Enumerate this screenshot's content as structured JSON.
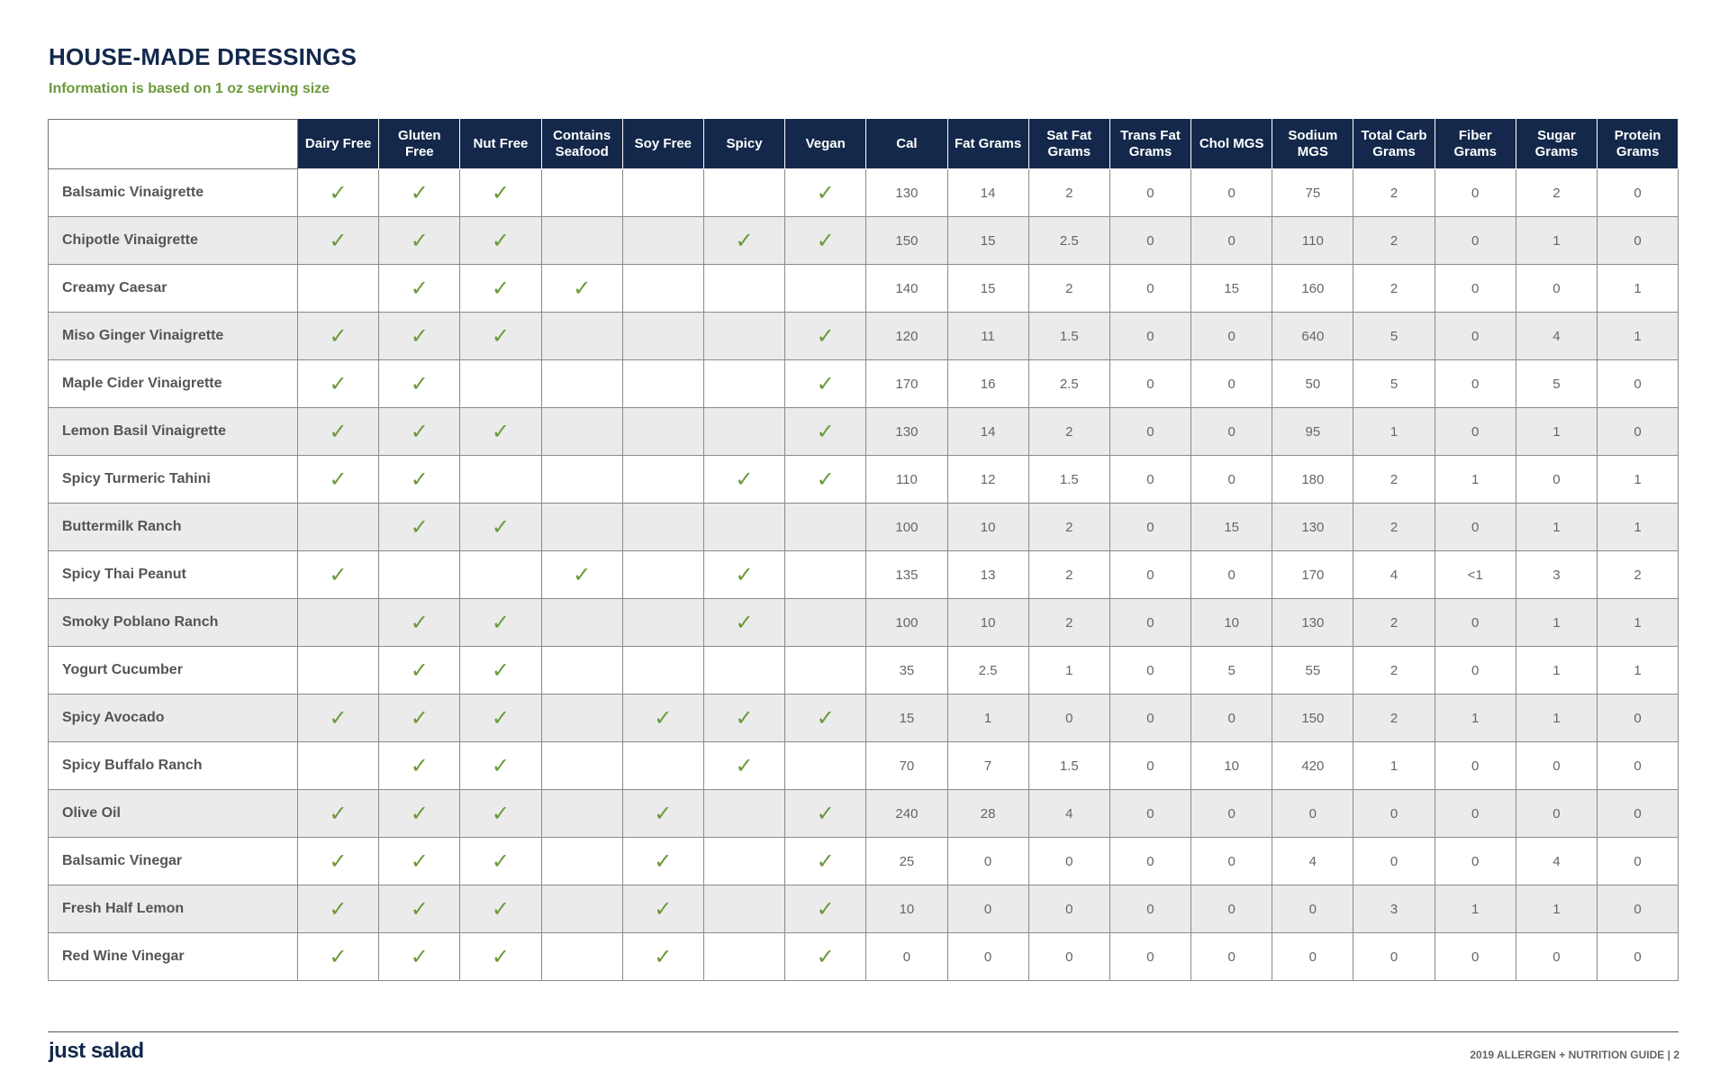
{
  "header": {
    "title": "HOUSE-MADE DRESSINGS",
    "subtitle": "Information is based on 1 oz serving size"
  },
  "table": {
    "columns": [
      null,
      "Dairy Free",
      "Gluten Free",
      "Nut Free",
      "Contains Seafood",
      "Soy Free",
      "Spicy",
      "Vegan",
      "Cal",
      "Fat Grams",
      "Sat Fat Grams",
      "Trans Fat Grams",
      "Chol MGS",
      "Sodium MGS",
      "Total Carb Grams",
      "Fiber Grams",
      "Sugar Grams",
      "Protein Grams"
    ],
    "rows": [
      [
        "Balsamic Vinaigrette",
        "✓",
        "✓",
        "✓",
        null,
        null,
        null,
        "✓",
        130,
        14,
        2,
        0,
        0,
        75,
        2,
        0,
        2,
        0
      ],
      [
        "Chipotle Vinaigrette",
        "✓",
        "✓",
        "✓",
        null,
        null,
        "✓",
        "✓",
        150,
        15,
        2.5,
        0,
        0,
        110,
        2,
        0,
        1,
        0
      ],
      [
        "Creamy Caesar",
        null,
        "✓",
        "✓",
        "✓",
        null,
        null,
        null,
        140,
        15,
        2,
        0,
        15,
        160,
        2,
        0,
        0,
        1
      ],
      [
        "Miso Ginger Vinaigrette",
        "✓",
        "✓",
        "✓",
        null,
        null,
        null,
        "✓",
        120,
        11,
        1.5,
        0,
        0,
        640,
        5,
        0,
        4,
        1
      ],
      [
        "Maple Cider Vinaigrette",
        "✓",
        "✓",
        null,
        null,
        null,
        null,
        "✓",
        170,
        16,
        2.5,
        0,
        0,
        50,
        5,
        0,
        5,
        0
      ],
      [
        "Lemon Basil Vinaigrette",
        "✓",
        "✓",
        "✓",
        null,
        null,
        null,
        "✓",
        130,
        14,
        2,
        0,
        0,
        95,
        1,
        0,
        1,
        0
      ],
      [
        "Spicy Turmeric Tahini",
        "✓",
        "✓",
        null,
        null,
        null,
        "✓",
        "✓",
        110,
        12,
        1.5,
        0,
        0,
        180,
        2,
        1,
        0,
        1
      ],
      [
        "Buttermilk Ranch",
        null,
        "✓",
        "✓",
        null,
        null,
        null,
        null,
        100,
        10,
        2,
        0,
        15,
        130,
        2,
        0,
        1,
        1
      ],
      [
        "Spicy Thai Peanut",
        "✓",
        null,
        null,
        "✓",
        null,
        "✓",
        null,
        135,
        13,
        2,
        0,
        0,
        170,
        4,
        "<1",
        3,
        2
      ],
      [
        "Smoky Poblano Ranch",
        null,
        "✓",
        "✓",
        null,
        null,
        "✓",
        null,
        100,
        10,
        2,
        0,
        10,
        130,
        2,
        0,
        1,
        1
      ],
      [
        "Yogurt Cucumber",
        null,
        "✓",
        "✓",
        null,
        null,
        null,
        null,
        35,
        2.5,
        1,
        0,
        5,
        55,
        2,
        0,
        1,
        1
      ],
      [
        "Spicy Avocado",
        "✓",
        "✓",
        "✓",
        null,
        "✓",
        "✓",
        "✓",
        15,
        1,
        0,
        0,
        0,
        150,
        2,
        1,
        1,
        0
      ],
      [
        "Spicy Buffalo Ranch",
        null,
        "✓",
        "✓",
        null,
        null,
        "✓",
        null,
        70,
        7,
        1.5,
        0,
        10,
        420,
        1,
        0,
        0,
        0
      ],
      [
        "Olive Oil",
        "✓",
        "✓",
        "✓",
        null,
        "✓",
        null,
        "✓",
        240,
        28,
        4,
        0,
        0,
        0,
        0,
        0,
        0,
        0
      ],
      [
        "Balsamic Vinegar",
        "✓",
        "✓",
        "✓",
        null,
        "✓",
        null,
        "✓",
        25,
        0,
        0,
        0,
        0,
        4,
        0,
        0,
        4,
        0
      ],
      [
        "Fresh Half Lemon",
        "✓",
        "✓",
        "✓",
        null,
        "✓",
        null,
        "✓",
        10,
        0,
        0,
        0,
        0,
        0,
        3,
        1,
        1,
        0
      ],
      [
        "Red Wine Vinegar",
        "✓",
        "✓",
        "✓",
        null,
        "✓",
        null,
        "✓",
        0,
        0,
        0,
        0,
        0,
        0,
        0,
        0,
        0,
        0
      ]
    ]
  },
  "footer": {
    "logo": "just salad",
    "guide": "2019 ALLERGEN + NUTRITION GUIDE | 2"
  }
}
